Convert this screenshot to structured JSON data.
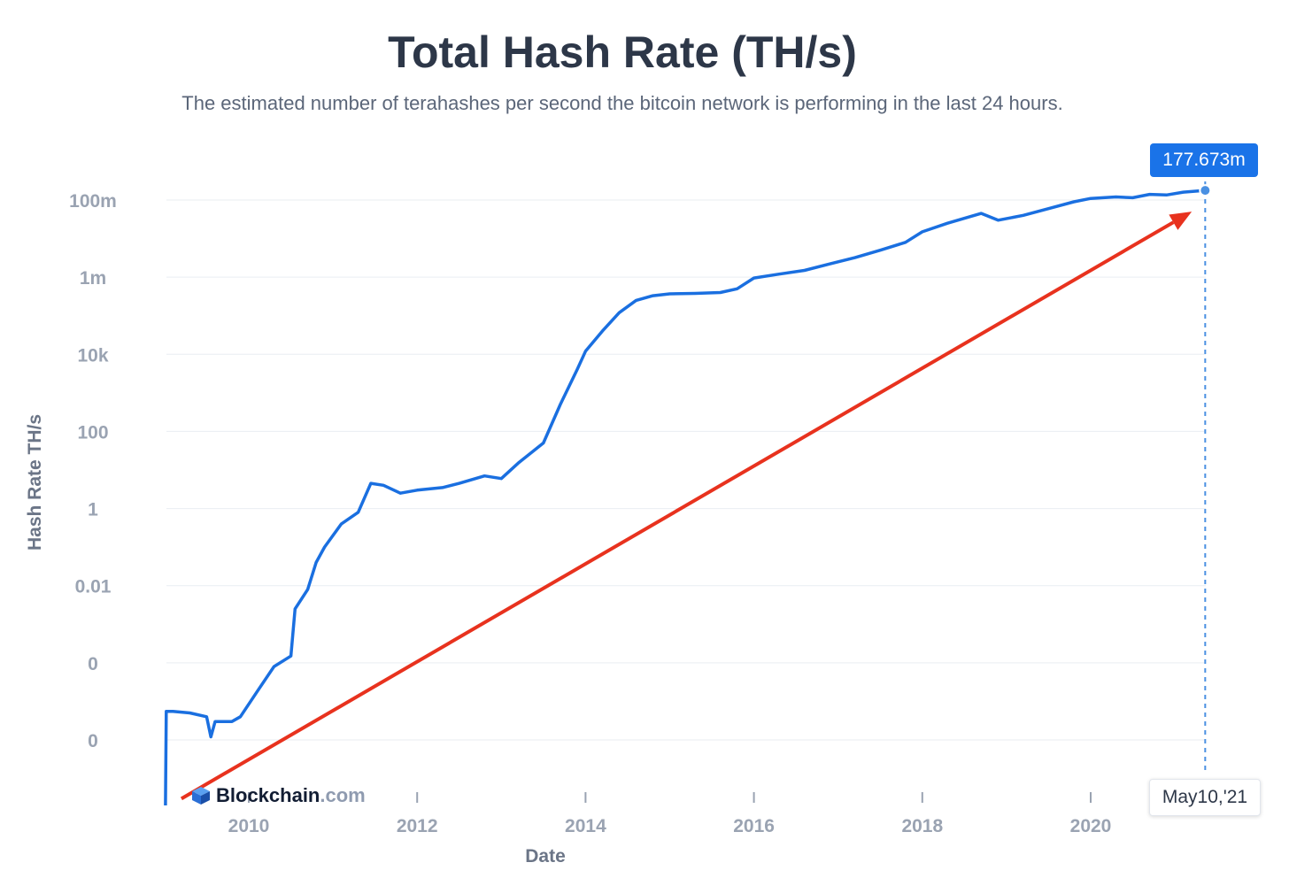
{
  "chart_data": {
    "type": "line",
    "title": "Total Hash Rate (TH/s)",
    "subtitle": "The estimated number of terahashes per second the bitcoin network is performing in the last 24 hours.",
    "xlabel": "Date",
    "ylabel": "Hash Rate TH/s",
    "y_scale": "log",
    "grid": true,
    "x_range": [
      2009.0,
      2021.36
    ],
    "y_ticks": [
      {
        "value": 1e-06,
        "label": "0"
      },
      {
        "value": 0.0001,
        "label": "0"
      },
      {
        "value": 0.01,
        "label": "0.01"
      },
      {
        "value": 1,
        "label": "1"
      },
      {
        "value": 100,
        "label": "100"
      },
      {
        "value": 10000,
        "label": "10k"
      },
      {
        "value": 1000000,
        "label": "1m"
      },
      {
        "value": 100000000,
        "label": "100m"
      }
    ],
    "x_ticks": [
      {
        "value": 2010,
        "label": "2010"
      },
      {
        "value": 2012,
        "label": "2012"
      },
      {
        "value": 2014,
        "label": "2014"
      },
      {
        "value": 2016,
        "label": "2016"
      },
      {
        "value": 2018,
        "label": "2018"
      },
      {
        "value": 2020,
        "label": "2020"
      }
    ],
    "series": [
      {
        "color": "#1a6fe0",
        "points": [
          [
            2009.01,
            2e-08
          ],
          [
            2009.02,
            5.5e-06
          ],
          [
            2009.1,
            5.5e-06
          ],
          [
            2009.3,
            5e-06
          ],
          [
            2009.5,
            4e-06
          ],
          [
            2009.55,
            1.2e-06
          ],
          [
            2009.6,
            3e-06
          ],
          [
            2009.8,
            3e-06
          ],
          [
            2009.9,
            4e-06
          ],
          [
            2010.1,
            1.8e-05
          ],
          [
            2010.3,
            8e-05
          ],
          [
            2010.5,
            0.00015
          ],
          [
            2010.55,
            0.0025
          ],
          [
            2010.7,
            0.008
          ],
          [
            2010.8,
            0.04
          ],
          [
            2010.9,
            0.1
          ],
          [
            2011.0,
            0.2
          ],
          [
            2011.1,
            0.4
          ],
          [
            2011.3,
            0.8
          ],
          [
            2011.45,
            4.5
          ],
          [
            2011.6,
            4.0
          ],
          [
            2011.8,
            2.5
          ],
          [
            2012.0,
            3.0
          ],
          [
            2012.3,
            3.5
          ],
          [
            2012.5,
            4.5
          ],
          [
            2012.8,
            7.0
          ],
          [
            2013.0,
            6.0
          ],
          [
            2013.2,
            15
          ],
          [
            2013.5,
            50
          ],
          [
            2013.7,
            500
          ],
          [
            2013.9,
            4000
          ],
          [
            2014.0,
            12000
          ],
          [
            2014.2,
            40000
          ],
          [
            2014.4,
            120000
          ],
          [
            2014.6,
            250000
          ],
          [
            2014.8,
            330000
          ],
          [
            2015.0,
            370000
          ],
          [
            2015.3,
            380000
          ],
          [
            2015.6,
            400000
          ],
          [
            2015.8,
            500000
          ],
          [
            2016.0,
            950000
          ],
          [
            2016.3,
            1200000
          ],
          [
            2016.6,
            1500000
          ],
          [
            2016.9,
            2200000
          ],
          [
            2017.2,
            3200000
          ],
          [
            2017.5,
            5000000
          ],
          [
            2017.8,
            8000000
          ],
          [
            2018.0,
            15000000
          ],
          [
            2018.3,
            25000000
          ],
          [
            2018.7,
            45000000
          ],
          [
            2018.9,
            30000000
          ],
          [
            2019.2,
            40000000
          ],
          [
            2019.5,
            60000000
          ],
          [
            2019.8,
            90000000
          ],
          [
            2020.0,
            110000000
          ],
          [
            2020.3,
            120000000
          ],
          [
            2020.5,
            115000000
          ],
          [
            2020.7,
            140000000
          ],
          [
            2020.9,
            135000000
          ],
          [
            2021.1,
            160000000
          ],
          [
            2021.36,
            177673000
          ]
        ]
      }
    ],
    "annotation": {
      "value_label": "177.673m",
      "date_label": "May10,'21",
      "x": 2021.36,
      "y": 177673000
    },
    "overlay_arrow": {
      "color": "#e8321e",
      "from": [
        2009.2,
        3e-08
      ],
      "to": [
        2021.2,
        50000000
      ]
    }
  },
  "brand": {
    "name": "Blockchain",
    "suffix": ".com"
  }
}
